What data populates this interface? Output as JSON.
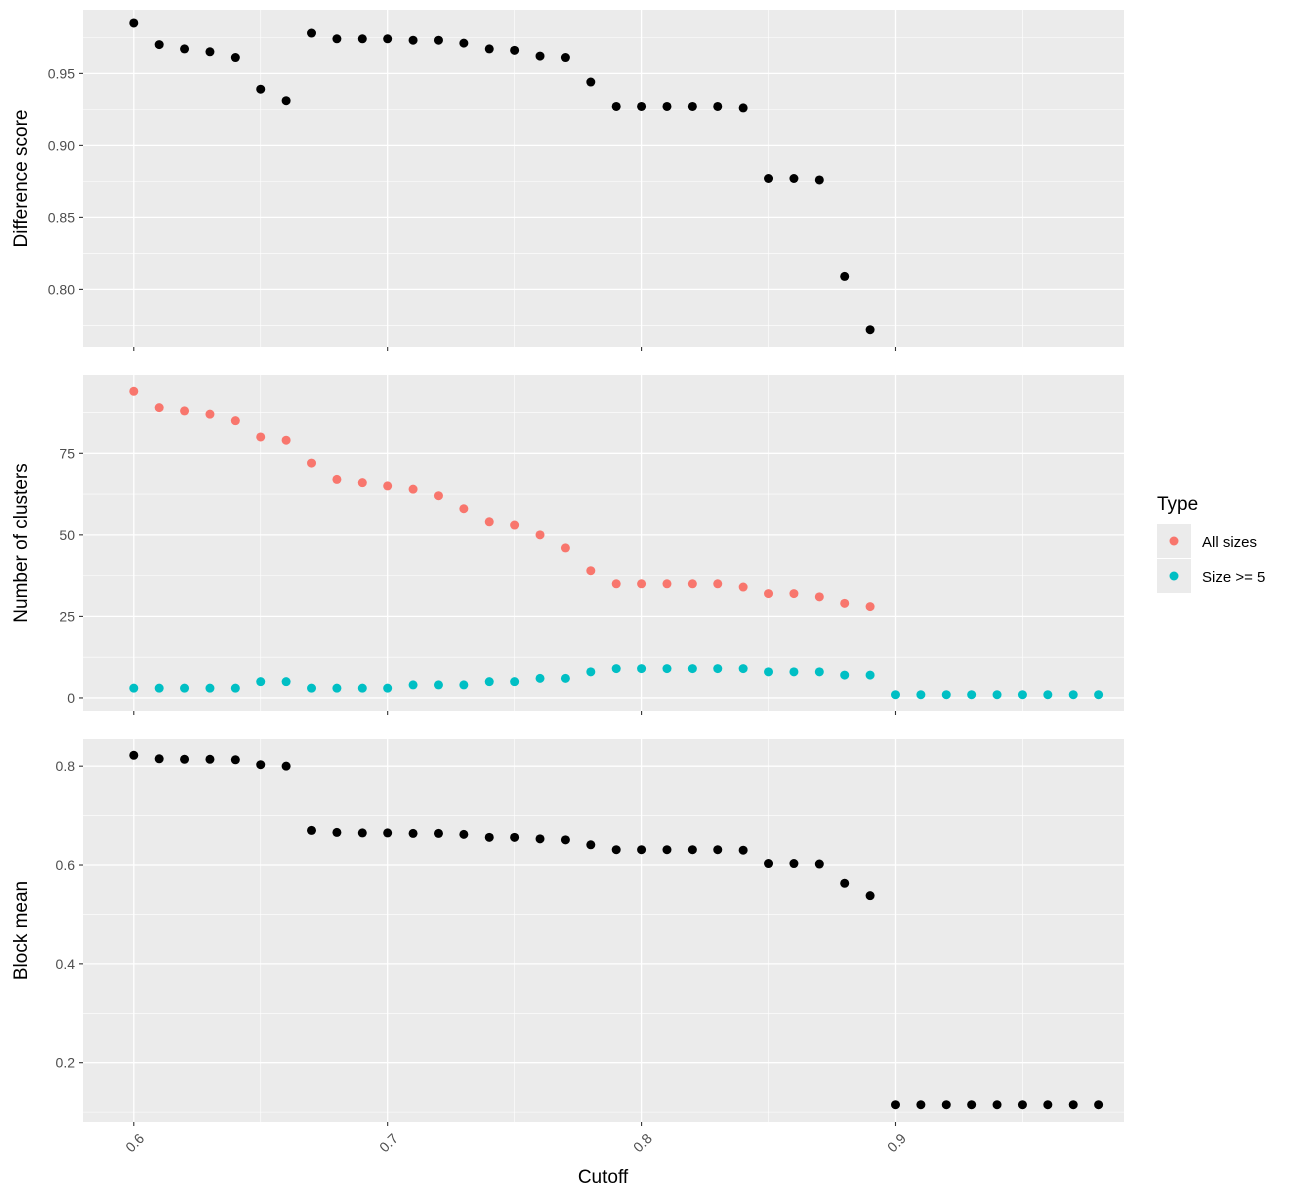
{
  "chart_data": [
    {
      "type": "scatter",
      "panel": "top",
      "ylabel": "Difference score",
      "xlabel": "",
      "xlim": [
        0.58,
        0.99
      ],
      "ylim": [
        0.76,
        0.994
      ],
      "yticks": [
        0.8,
        0.85,
        0.9,
        0.95
      ],
      "ytick_labels": [
        "0.80",
        "0.85",
        "0.90",
        "0.95"
      ],
      "xticks": [
        0.6,
        0.7,
        0.8,
        0.9
      ],
      "xtick_labels": [
        "0.6",
        "0.7",
        "0.8",
        "0.9"
      ],
      "grid": true,
      "series": [
        {
          "color": "#000000",
          "x": [
            0.6,
            0.61,
            0.62,
            0.63,
            0.64,
            0.65,
            0.66,
            0.67,
            0.68,
            0.69,
            0.7,
            0.71,
            0.72,
            0.73,
            0.74,
            0.75,
            0.76,
            0.77,
            0.78,
            0.79,
            0.8,
            0.81,
            0.82,
            0.83,
            0.84,
            0.85,
            0.86,
            0.87,
            0.88,
            0.89
          ],
          "y": [
            0.985,
            0.97,
            0.967,
            0.965,
            0.961,
            0.939,
            0.931,
            0.978,
            0.974,
            0.974,
            0.974,
            0.973,
            0.973,
            0.971,
            0.967,
            0.966,
            0.962,
            0.961,
            0.944,
            0.927,
            0.927,
            0.927,
            0.927,
            0.927,
            0.926,
            0.877,
            0.877,
            0.876,
            0.809,
            0.772
          ]
        }
      ]
    },
    {
      "type": "scatter",
      "panel": "middle",
      "ylabel": "Number of clusters",
      "xlabel": "",
      "xlim": [
        0.58,
        0.99
      ],
      "ylim": [
        -4,
        99
      ],
      "yticks": [
        0,
        25,
        50,
        75
      ],
      "ytick_labels": [
        "0",
        "25",
        "50",
        "75"
      ],
      "xticks": [
        0.6,
        0.7,
        0.8,
        0.9
      ],
      "xtick_labels": [
        "0.6",
        "0.7",
        "0.8",
        "0.9"
      ],
      "grid": true,
      "legend_title": "Type",
      "legend_position": "right",
      "series": [
        {
          "name": "All sizes",
          "color": "#F8766D",
          "x": [
            0.6,
            0.61,
            0.62,
            0.63,
            0.64,
            0.65,
            0.66,
            0.67,
            0.68,
            0.69,
            0.7,
            0.71,
            0.72,
            0.73,
            0.74,
            0.75,
            0.76,
            0.77,
            0.78,
            0.79,
            0.8,
            0.81,
            0.82,
            0.83,
            0.84,
            0.85,
            0.86,
            0.87,
            0.88,
            0.89
          ],
          "y": [
            94,
            89,
            88,
            87,
            85,
            80,
            79,
            72,
            67,
            66,
            65,
            64,
            62,
            58,
            54,
            53,
            50,
            46,
            39,
            35,
            35,
            35,
            35,
            35,
            34,
            32,
            32,
            31,
            29,
            28
          ]
        },
        {
          "name": "Size >= 5",
          "color": "#00BFC4",
          "x": [
            0.6,
            0.61,
            0.62,
            0.63,
            0.64,
            0.65,
            0.66,
            0.67,
            0.68,
            0.69,
            0.7,
            0.71,
            0.72,
            0.73,
            0.74,
            0.75,
            0.76,
            0.77,
            0.78,
            0.79,
            0.8,
            0.81,
            0.82,
            0.83,
            0.84,
            0.85,
            0.86,
            0.87,
            0.88,
            0.89,
            0.9,
            0.91,
            0.92,
            0.93,
            0.94,
            0.95,
            0.96,
            0.97,
            0.98
          ],
          "y": [
            3,
            3,
            3,
            3,
            3,
            5,
            5,
            3,
            3,
            3,
            3,
            4,
            4,
            4,
            5,
            5,
            6,
            6,
            8,
            9,
            9,
            9,
            9,
            9,
            9,
            8,
            8,
            8,
            7,
            7,
            1,
            1,
            1,
            1,
            1,
            1,
            1,
            1,
            1
          ]
        }
      ]
    },
    {
      "type": "scatter",
      "panel": "bottom",
      "ylabel": "Block mean",
      "xlabel": "Cutoff",
      "xlim": [
        0.58,
        0.99
      ],
      "ylim": [
        0.08,
        0.855
      ],
      "yticks": [
        0.2,
        0.4,
        0.6,
        0.8
      ],
      "ytick_labels": [
        "0.2",
        "0.4",
        "0.6",
        "0.8"
      ],
      "xticks": [
        0.6,
        0.7,
        0.8,
        0.9
      ],
      "xtick_labels": [
        "0.6",
        "0.7",
        "0.8",
        "0.9"
      ],
      "grid": true,
      "series": [
        {
          "color": "#000000",
          "x": [
            0.6,
            0.61,
            0.62,
            0.63,
            0.64,
            0.65,
            0.66,
            0.67,
            0.68,
            0.69,
            0.7,
            0.71,
            0.72,
            0.73,
            0.74,
            0.75,
            0.76,
            0.77,
            0.78,
            0.79,
            0.8,
            0.81,
            0.82,
            0.83,
            0.84,
            0.85,
            0.86,
            0.87,
            0.88,
            0.89,
            0.9,
            0.91,
            0.92,
            0.93,
            0.94,
            0.95,
            0.96,
            0.97,
            0.98
          ],
          "y": [
            0.822,
            0.815,
            0.814,
            0.814,
            0.813,
            0.803,
            0.8,
            0.67,
            0.666,
            0.665,
            0.665,
            0.664,
            0.664,
            0.662,
            0.656,
            0.656,
            0.653,
            0.651,
            0.641,
            0.631,
            0.631,
            0.631,
            0.631,
            0.631,
            0.63,
            0.603,
            0.603,
            0.602,
            0.563,
            0.538,
            0.115,
            0.115,
            0.115,
            0.115,
            0.115,
            0.115,
            0.115,
            0.115,
            0.115
          ]
        }
      ]
    }
  ]
}
